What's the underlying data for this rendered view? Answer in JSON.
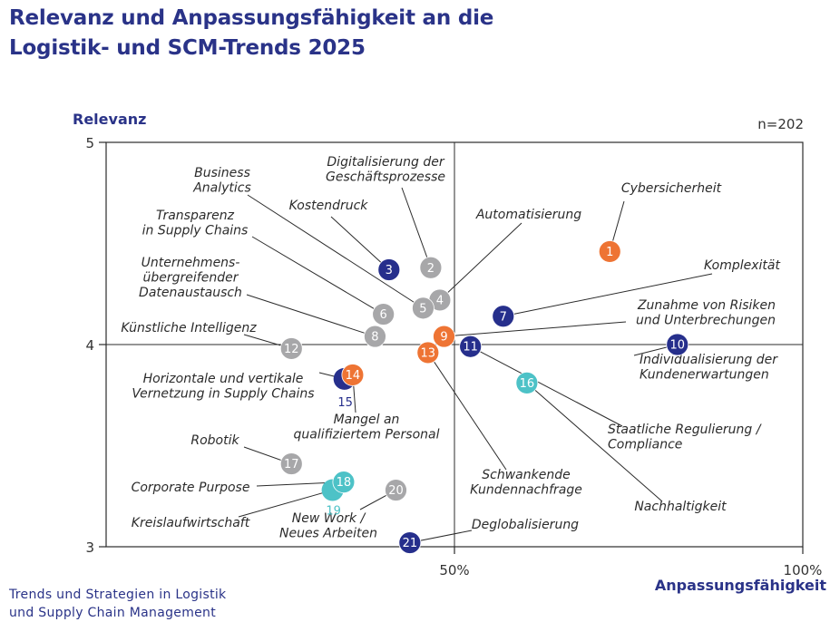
{
  "title": {
    "line1": "Relevanz und Anpassungsfähigkeit an die",
    "line2": "Logistik- und SCM-Trends 2025"
  },
  "footer": {
    "line1": "Trends und Strategien in Logistik",
    "line2": "und Supply Chain Management"
  },
  "colors": {
    "navy": "#262f8c",
    "orange": "#ee7434",
    "grey": "#a7a7a9",
    "teal": "#4dc2c7",
    "line": "#2b2b2b",
    "accent_text": "#2a3388"
  },
  "chart_data": {
    "type": "scatter",
    "title": "Relevanz und Anpassungsfähigkeit an die Logistik- und SCM-Trends 2025",
    "sample": "n=202",
    "xlabel": "Anpassungsfähigkeit",
    "ylabel": "Relevanz",
    "xlim": [
      0,
      100
    ],
    "ylim": [
      3,
      5
    ],
    "x_ticks": [
      {
        "value": 50,
        "label": "50%"
      },
      {
        "value": 100,
        "label": "100%"
      }
    ],
    "y_ticks": [
      {
        "value": 3,
        "label": "3"
      },
      {
        "value": 4,
        "label": "4"
      },
      {
        "value": 5,
        "label": "5"
      }
    ],
    "quadrant_lines": {
      "x": 50,
      "y": 4
    },
    "points": [
      {
        "id": 1,
        "x": 72.3,
        "y": 4.46,
        "color": "orange",
        "label": [
          "Cybersicherheit"
        ]
      },
      {
        "id": 2,
        "x": 46.6,
        "y": 4.38,
        "color": "grey",
        "label": [
          "Digitalisierung der",
          "Geschäftsprozesse"
        ]
      },
      {
        "id": 3,
        "x": 40.6,
        "y": 4.37,
        "color": "navy",
        "label": [
          "Kostendruck"
        ]
      },
      {
        "id": 4,
        "x": 47.9,
        "y": 4.22,
        "color": "grey",
        "label": [
          "Automatisierung"
        ]
      },
      {
        "id": 5,
        "x": 45.5,
        "y": 4.18,
        "color": "grey",
        "label": [
          "Business",
          "Analytics"
        ]
      },
      {
        "id": 6,
        "x": 39.8,
        "y": 4.15,
        "color": "grey",
        "label": [
          "Transparenz",
          "in Supply Chains"
        ]
      },
      {
        "id": 7,
        "x": 57.0,
        "y": 4.14,
        "color": "navy",
        "label": [
          "Komplexität"
        ]
      },
      {
        "id": 8,
        "x": 38.6,
        "y": 4.04,
        "color": "grey",
        "label": [
          "Unternehmens-",
          "übergreifender",
          "Datenaustausch"
        ]
      },
      {
        "id": 9,
        "x": 48.5,
        "y": 4.04,
        "color": "orange",
        "label": [
          "Zunahme von Risiken",
          "und Unterbrechungen"
        ]
      },
      {
        "id": 10,
        "x": 82.0,
        "y": 4.0,
        "color": "navy",
        "label": [
          "Individualisierung der",
          "Kundenerwartungen"
        ]
      },
      {
        "id": 11,
        "x": 52.3,
        "y": 3.99,
        "color": "navy",
        "label": []
      },
      {
        "id": 12,
        "x": 26.6,
        "y": 3.98,
        "color": "grey",
        "label": [
          "Künstliche Intelligenz"
        ]
      },
      {
        "id": 13,
        "x": 46.2,
        "y": 3.96,
        "color": "orange",
        "label": [
          "Schwankende",
          "Kundennachfrage"
        ]
      },
      {
        "id": 14,
        "x": 35.4,
        "y": 3.85,
        "color": "orange",
        "label": [
          "Mangel an",
          "qualifiziertem Personal"
        ]
      },
      {
        "id": 15,
        "x": 34.2,
        "y": 3.83,
        "color": "navy",
        "label": [
          "Horizontale und vertikale",
          "Vernetzung in Supply Chains"
        ]
      },
      {
        "id": 16,
        "x": 60.4,
        "y": 3.81,
        "color": "teal",
        "label": [
          "Nachhaltigkeit"
        ]
      },
      {
        "id": 17,
        "x": 26.6,
        "y": 3.41,
        "color": "grey",
        "label": [
          "Robotik"
        ]
      },
      {
        "id": 18,
        "x": 34.1,
        "y": 3.32,
        "color": "teal",
        "label": [
          "Corporate Purpose"
        ]
      },
      {
        "id": 19,
        "x": 32.5,
        "y": 3.28,
        "color": "teal",
        "label": [
          "Kreislaufwirtschaft"
        ]
      },
      {
        "id": 20,
        "x": 41.6,
        "y": 3.28,
        "color": "grey",
        "label": [
          "New Work /",
          "Neues Arbeiten"
        ]
      },
      {
        "id": 21,
        "x": 43.6,
        "y": 3.02,
        "color": "navy",
        "label": [
          "Deglobalisierung"
        ]
      }
    ],
    "extra_labels": [
      {
        "text": [
          "Staatliche Regulierung /",
          "Compliance"
        ],
        "ref": 11
      }
    ]
  }
}
